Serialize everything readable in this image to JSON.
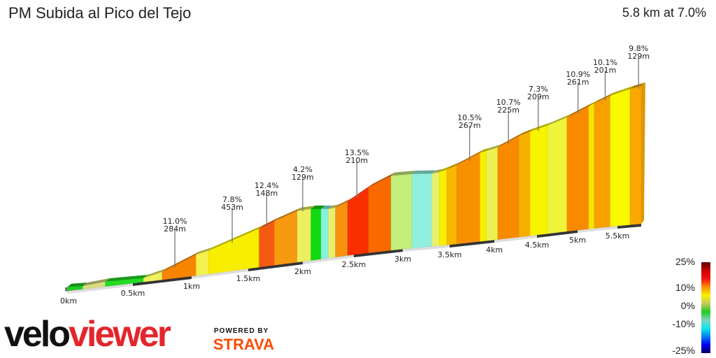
{
  "header": {
    "title": "PM Subida al Pico del Tejo",
    "summary": "5.8 km at 7.0%"
  },
  "chart_data": {
    "type": "area",
    "title": "PM Subida al Pico del Tejo",
    "total_distance_km": 5.8,
    "average_grade_percent": 7.0,
    "x_ticks": [
      "0km",
      "0.5km",
      "1km",
      "1.5km",
      "2km",
      "2.5km",
      "3km",
      "3.5km",
      "4km",
      "4.5km",
      "5km",
      "5.5km"
    ],
    "segments": [
      {
        "start_km": 0.0,
        "end_km": 0.12,
        "color": "#22cc22"
      },
      {
        "start_km": 0.12,
        "end_km": 0.29,
        "color": "#d8dc80"
      },
      {
        "start_km": 0.29,
        "end_km": 0.59,
        "color": "#22dd22"
      },
      {
        "start_km": 0.59,
        "end_km": 0.75,
        "color": "#eef060"
      },
      {
        "start_km": 0.75,
        "end_km": 1.04,
        "color": "#f88400"
      },
      {
        "start_km": 1.04,
        "end_km": 1.15,
        "color": "#f4f050"
      },
      {
        "start_km": 1.15,
        "end_km": 1.6,
        "color": "#f8ee00"
      },
      {
        "start_km": 1.6,
        "end_km": 1.74,
        "color": "#f65a10"
      },
      {
        "start_km": 1.74,
        "end_km": 1.95,
        "color": "#f89a10"
      },
      {
        "start_km": 1.95,
        "end_km": 2.08,
        "color": "#ecf060"
      },
      {
        "start_km": 2.08,
        "end_km": 2.18,
        "color": "#12d812"
      },
      {
        "start_km": 2.18,
        "end_km": 2.25,
        "color": "#88f0e0"
      },
      {
        "start_km": 2.25,
        "end_km": 2.32,
        "color": "#e6f070"
      },
      {
        "start_km": 2.32,
        "end_km": 2.44,
        "color": "#f89010"
      },
      {
        "start_km": 2.44,
        "end_km": 2.65,
        "color": "#f83000"
      },
      {
        "start_km": 2.65,
        "end_km": 2.88,
        "color": "#f86a00"
      },
      {
        "start_km": 2.88,
        "end_km": 3.1,
        "color": "#c2ee7a"
      },
      {
        "start_km": 3.1,
        "end_km": 3.31,
        "color": "#90f0e0"
      },
      {
        "start_km": 3.31,
        "end_km": 3.39,
        "color": "#e8f070"
      },
      {
        "start_km": 3.39,
        "end_km": 3.47,
        "color": "#f8f000"
      },
      {
        "start_km": 3.47,
        "end_km": 3.58,
        "color": "#f8b800"
      },
      {
        "start_km": 3.58,
        "end_km": 3.84,
        "color": "#f89000"
      },
      {
        "start_km": 3.84,
        "end_km": 3.91,
        "color": "#f8f000"
      },
      {
        "start_km": 3.91,
        "end_km": 4.04,
        "color": "#eef050"
      },
      {
        "start_km": 4.04,
        "end_km": 4.29,
        "color": "#f88a00"
      },
      {
        "start_km": 4.29,
        "end_km": 4.42,
        "color": "#f8b000"
      },
      {
        "start_km": 4.42,
        "end_km": 4.63,
        "color": "#f8f400"
      },
      {
        "start_km": 4.63,
        "end_km": 4.87,
        "color": "#eef43a"
      },
      {
        "start_km": 4.87,
        "end_km": 5.14,
        "color": "#f88a00"
      },
      {
        "start_km": 5.14,
        "end_km": 5.21,
        "color": "#f8e400"
      },
      {
        "start_km": 5.21,
        "end_km": 5.41,
        "color": "#f8a000"
      },
      {
        "start_km": 5.41,
        "end_km": 5.66,
        "color": "#f8f800"
      },
      {
        "start_km": 5.66,
        "end_km": 5.8,
        "color": "#f8a800"
      }
    ],
    "annotations": [
      {
        "km": 0.84,
        "grade": "11.0%",
        "length": "284m"
      },
      {
        "km": 1.34,
        "grade": "7.8%",
        "length": "453m"
      },
      {
        "km": 1.65,
        "grade": "12.4%",
        "length": "148m"
      },
      {
        "km": 1.98,
        "grade": "4.2%",
        "length": "129m"
      },
      {
        "km": 2.51,
        "grade": "13.5%",
        "length": "210m"
      },
      {
        "km": 3.7,
        "grade": "10.5%",
        "length": "267m"
      },
      {
        "km": 4.14,
        "grade": "10.7%",
        "length": "225m"
      },
      {
        "km": 4.49,
        "grade": "7.3%",
        "length": "209m"
      },
      {
        "km": 4.98,
        "grade": "10.9%",
        "length": "261m"
      },
      {
        "km": 5.32,
        "grade": "10.1%",
        "length": "201m"
      },
      {
        "km": 5.74,
        "grade": "9.8%",
        "length": "129m"
      }
    ],
    "legend": {
      "labels": [
        "25%",
        "10%",
        "0%",
        "-10%",
        "-25%"
      ],
      "gradient": [
        "#5a0000",
        "#cc0000",
        "#f01010",
        "#f89000",
        "#f8f000",
        "#c8c860",
        "#22cc22",
        "#80d0c0",
        "#10e8e8",
        "#0080f0",
        "#0000f0",
        "#000060"
      ]
    }
  },
  "branding": {
    "logo_part1": "velo",
    "logo_part2": "viewer",
    "powered_by": "POWERED BY",
    "strava": "STRAVA",
    "strava_color": "#fc4c02"
  }
}
